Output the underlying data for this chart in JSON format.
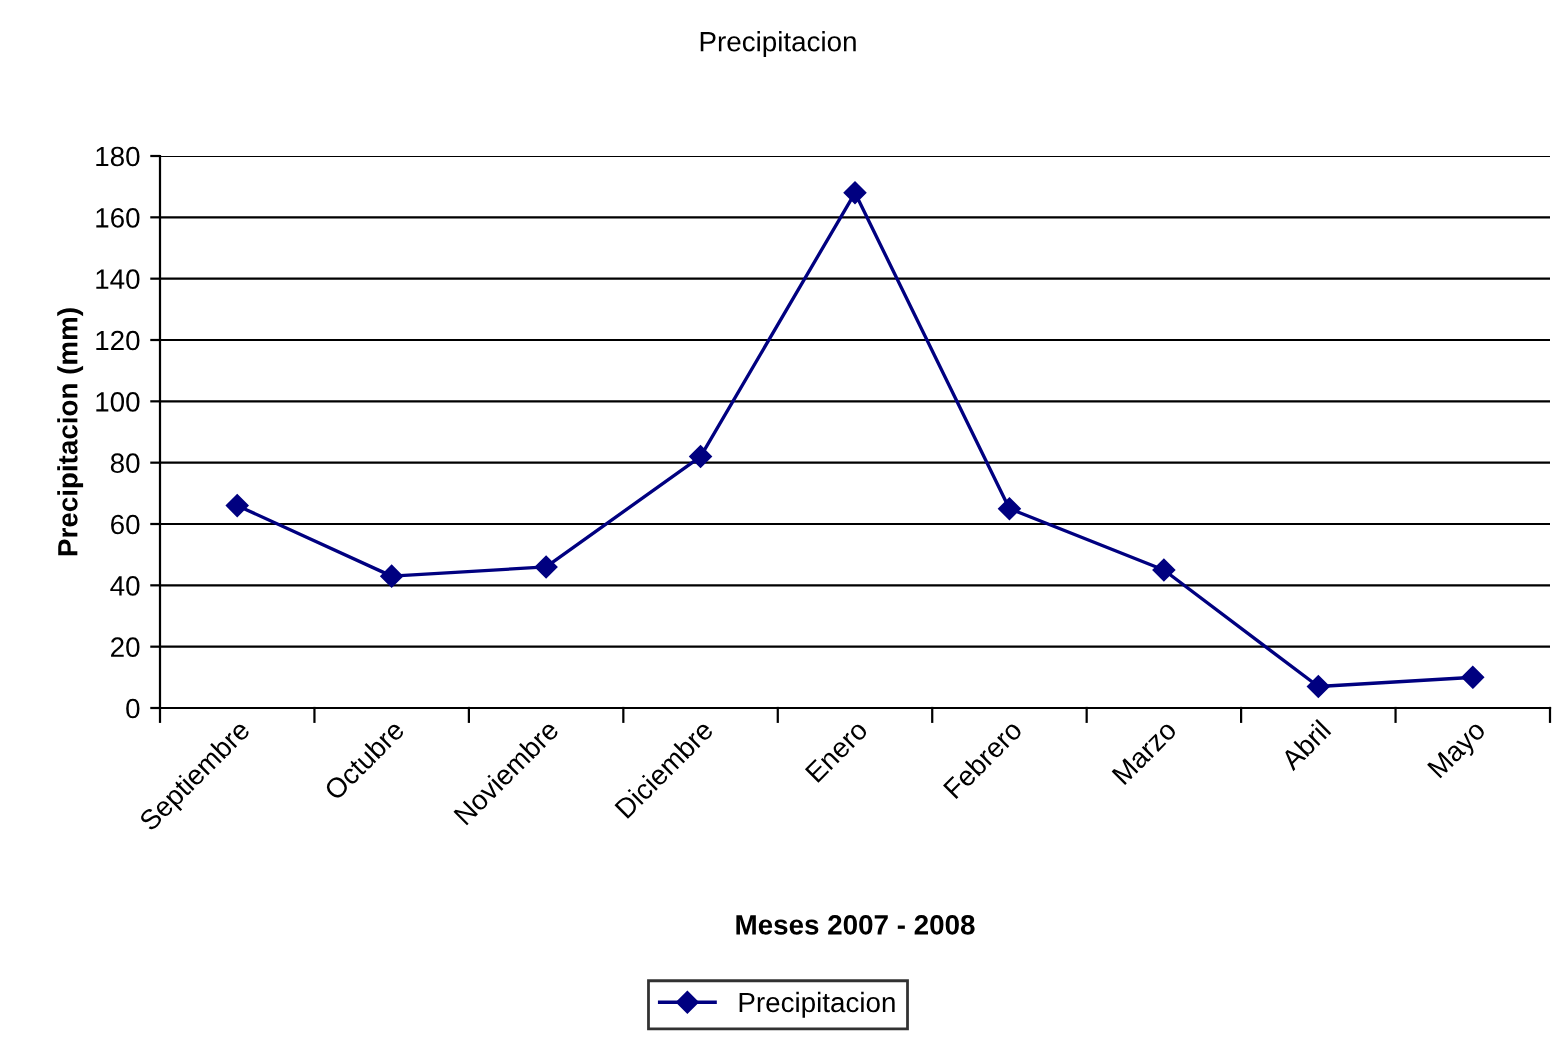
{
  "chart_data": {
    "type": "line",
    "title": "Precipitacion",
    "xlabel": "Meses 2007 - 2008",
    "ylabel": "Precipitacion (mm)",
    "categories": [
      "Septiembre",
      "Octubre",
      "Noviembre",
      "Diciembre",
      "Enero",
      "Febrero",
      "Marzo",
      "Abril",
      "Mayo"
    ],
    "series": [
      {
        "name": "Precipitacion",
        "color": "#000080",
        "values": [
          66,
          43,
          46,
          82,
          168,
          65,
          45,
          7,
          10
        ]
      }
    ],
    "ylim": [
      0,
      180
    ],
    "yticks": [
      0,
      20,
      40,
      60,
      80,
      100,
      120,
      140,
      160,
      180
    ],
    "grid": "y",
    "legend": "bottom",
    "marker": "diamond",
    "line_style": "solid"
  }
}
